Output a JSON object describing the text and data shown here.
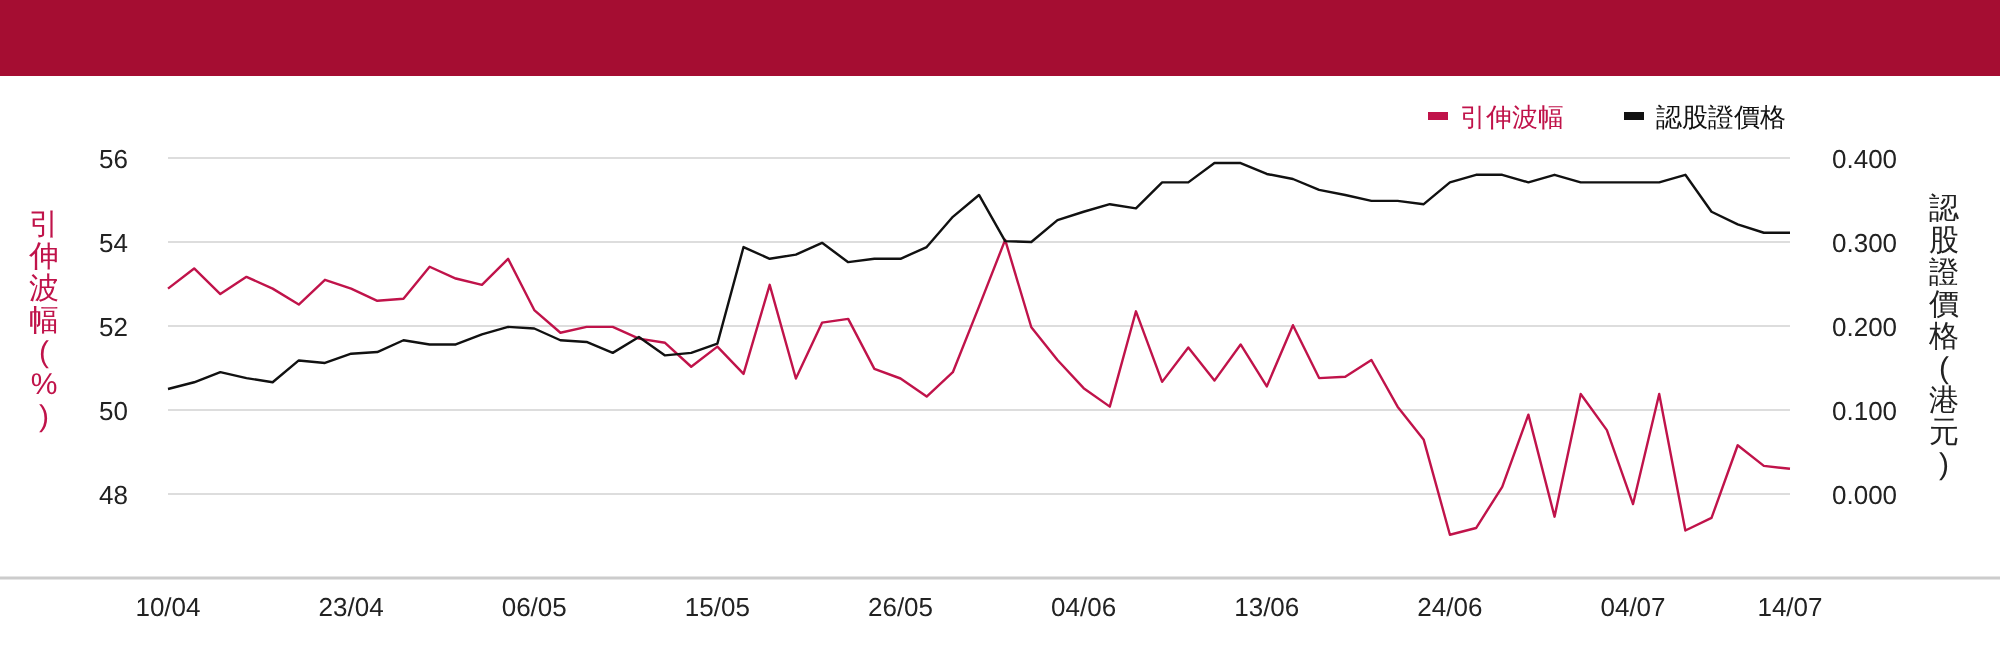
{
  "chart_data": {
    "type": "line",
    "ylabel": "引伸波幅(%)",
    "y2label": "認股證價格(港元)",
    "categories": [
      "10/04",
      null,
      null,
      null,
      null,
      null,
      null,
      "23/04",
      null,
      null,
      null,
      null,
      null,
      null,
      "06/05",
      null,
      null,
      null,
      null,
      null,
      null,
      "15/05",
      null,
      null,
      null,
      null,
      null,
      null,
      "26/05",
      null,
      null,
      null,
      null,
      null,
      null,
      "04/06",
      null,
      null,
      null,
      null,
      null,
      null,
      "13/06",
      null,
      null,
      null,
      null,
      null,
      null,
      "24/06",
      null,
      null,
      null,
      null,
      null,
      null,
      "04/07",
      null,
      null,
      null,
      null,
      null,
      "14/07"
    ],
    "series": [
      {
        "name": "引伸波幅",
        "color": "#c0134a",
        "values": [
          52.89,
          53.37,
          52.76,
          53.17,
          52.89,
          52.51,
          53.1,
          52.89,
          52.6,
          52.65,
          53.41,
          53.13,
          52.98,
          53.6,
          52.38,
          51.84,
          51.98,
          51.98,
          51.7,
          51.6,
          51.03,
          51.51,
          50.86,
          52.98,
          50.75,
          52.08,
          52.17,
          50.98,
          50.75,
          50.32,
          50.9,
          52.46,
          54.05,
          51.97,
          51.19,
          50.52,
          50.08,
          52.35,
          50.67,
          51.49,
          50.7,
          51.56,
          50.56,
          52.02,
          50.76,
          50.79,
          51.19,
          50.08,
          49.29,
          47.03,
          47.19,
          48.17,
          49.89,
          47.46,
          50.38,
          49.52,
          47.76,
          50.38,
          47.13,
          47.43,
          49.16,
          48.67,
          48.6
        ]
      },
      {
        "name": "認股證價格",
        "color": "#111111",
        "axis": "y2",
        "values": [
          0.125,
          0.133,
          0.145,
          0.138,
          0.133,
          0.159,
          0.156,
          0.167,
          0.169,
          0.183,
          0.178,
          0.178,
          0.19,
          0.199,
          0.197,
          0.183,
          0.181,
          0.168,
          0.187,
          0.165,
          0.168,
          0.179,
          0.294,
          0.28,
          0.285,
          0.299,
          0.276,
          0.28,
          0.28,
          0.294,
          0.33,
          0.356,
          0.301,
          0.3,
          0.326,
          0.336,
          0.345,
          0.34,
          0.371,
          0.371,
          0.394,
          0.394,
          0.381,
          0.375,
          0.362,
          0.356,
          0.349,
          0.349,
          0.345,
          0.371,
          0.38,
          0.38,
          0.371,
          0.38,
          0.371,
          0.371,
          0.371,
          0.371,
          0.38,
          0.336,
          0.321,
          0.311,
          0.311
        ]
      }
    ],
    "ylim": [
      46,
      56
    ],
    "yticks": [
      48,
      50,
      52,
      54,
      56
    ],
    "y2lim": [
      -0.1,
      0.4
    ],
    "y2ticks": [
      {
        "value": 0,
        "label": "0.000"
      },
      {
        "value": 0.1,
        "label": "0.100"
      },
      {
        "value": 0.2,
        "label": "0.200"
      },
      {
        "value": 0.3,
        "label": "0.300"
      },
      {
        "value": 0.4,
        "label": "0.400"
      }
    ],
    "grid": "y",
    "legend": "top right",
    "marker": "none",
    "line_style": "solid"
  }
}
